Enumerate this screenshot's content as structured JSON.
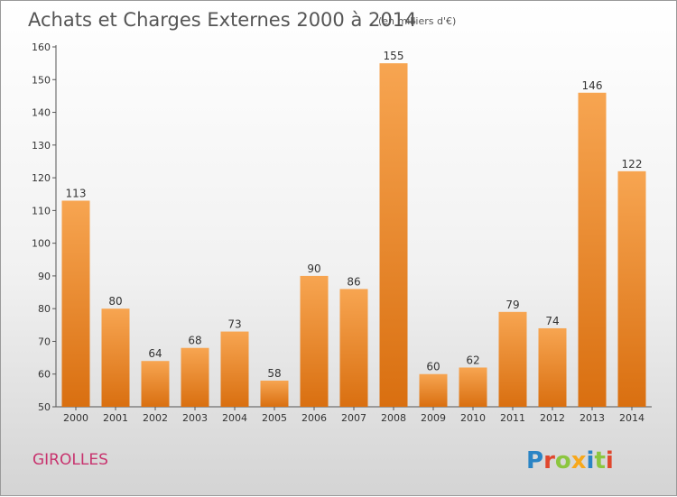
{
  "chart_data": {
    "type": "bar",
    "title": "Achats et Charges Externes 2000 à 2014",
    "subtitle": "(en milliers d'€)",
    "categories": [
      "2000",
      "2001",
      "2002",
      "2003",
      "2004",
      "2005",
      "2006",
      "2007",
      "2008",
      "2009",
      "2010",
      "2011",
      "2012",
      "2013",
      "2014"
    ],
    "values": [
      113,
      80,
      64,
      68,
      73,
      58,
      90,
      86,
      155,
      60,
      62,
      79,
      74,
      146,
      122
    ],
    "ylim": [
      50,
      160
    ],
    "yticks": [
      50,
      60,
      70,
      80,
      90,
      100,
      110,
      120,
      130,
      140,
      150,
      160
    ],
    "xlabel": "",
    "ylabel": "",
    "grid": false,
    "bar_color": "#f0902e"
  },
  "footer": {
    "town": "GIROLLES",
    "logo": "Proxiti"
  },
  "colors": {
    "town": "#c8336e",
    "logo_letters": [
      "#2a84c5",
      "#e0472d",
      "#8cc63f",
      "#f7a81b",
      "#2a84c5",
      "#8cc63f",
      "#e0472d"
    ]
  }
}
